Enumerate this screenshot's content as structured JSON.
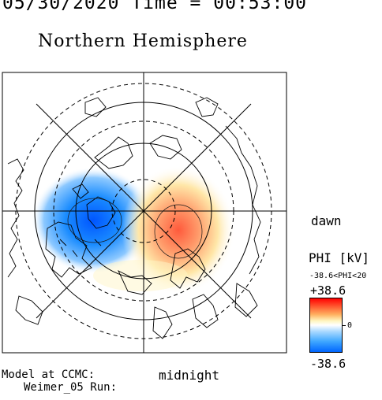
{
  "header": {
    "date_time": "05/30/2020 Time = 00:53:00",
    "hemisphere": "Northern Hemisphere"
  },
  "map": {
    "dawn_label": "dawn",
    "midnight_label": "midnight",
    "model_label": "Model at CCMC:",
    "run_label": "Weimer_05 Run:"
  },
  "colorbar": {
    "title": "PHI [kV]",
    "range_text": "-38.6<PHI<20",
    "max_label": "+38.6",
    "zero_label": "0",
    "min_label": "-38.6",
    "colors": [
      "#ff0000",
      "#ffffff",
      "#0066ff"
    ]
  }
}
